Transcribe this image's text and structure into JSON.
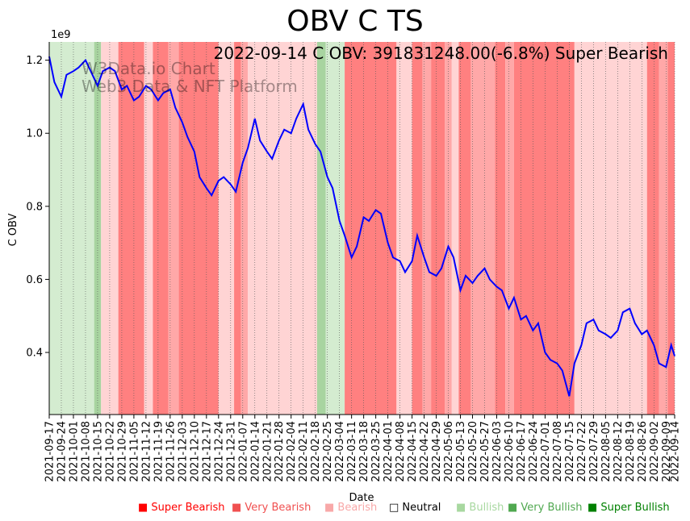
{
  "chart_data": {
    "type": "line",
    "title": "OBV C TS",
    "annotation": "2022-09-14 C OBV: 391831248.00(-6.8%) Super Bearish",
    "watermark": [
      "W3Data.io Chart",
      "Web3 Data & NFT Platform"
    ],
    "xlabel": "Date",
    "ylabel": "C OBV",
    "y_multiplier": "1e9",
    "ylim": [
      0.23,
      1.25
    ],
    "yticks": [
      "0.4",
      "0.6",
      "0.8",
      "1.0",
      "1.2"
    ],
    "xticks": [
      "2021-09-17",
      "2021-09-24",
      "2021-10-01",
      "2021-10-08",
      "2021-10-15",
      "2021-10-22",
      "2021-10-29",
      "2021-11-05",
      "2021-11-12",
      "2021-11-19",
      "2021-11-26",
      "2021-12-03",
      "2021-12-10",
      "2021-12-17",
      "2021-12-24",
      "2021-12-31",
      "2022-01-07",
      "2022-01-14",
      "2022-01-21",
      "2022-01-28",
      "2022-02-04",
      "2022-02-11",
      "2022-02-18",
      "2022-02-25",
      "2022-03-04",
      "2022-03-11",
      "2022-03-18",
      "2022-03-25",
      "2022-04-01",
      "2022-04-08",
      "2022-04-15",
      "2022-04-22",
      "2022-04-29",
      "2022-05-06",
      "2022-05-13",
      "2022-05-20",
      "2022-05-27",
      "2022-06-03",
      "2022-06-10",
      "2022-06-17",
      "2022-06-24",
      "2022-07-01",
      "2022-07-08",
      "2022-07-15",
      "2022-07-22",
      "2022-07-29",
      "2022-08-05",
      "2022-08-12",
      "2022-08-19",
      "2022-08-26",
      "2022-09-02",
      "2022-09-09",
      "2022-09-14"
    ],
    "x_range": [
      "2021-09-17",
      "2022-09-14"
    ],
    "grid": "vertical-dotted",
    "line_color": "#0000ff",
    "series": [
      {
        "x": [
          "2021-09-17",
          "2021-09-20",
          "2021-09-24",
          "2021-09-27",
          "2021-10-01",
          "2021-10-04",
          "2021-10-08",
          "2021-10-11",
          "2021-10-15",
          "2021-10-18",
          "2021-10-22",
          "2021-10-25",
          "2021-10-29",
          "2021-11-01",
          "2021-11-05",
          "2021-11-08",
          "2021-11-12",
          "2021-11-15",
          "2021-11-19",
          "2021-11-22",
          "2021-11-26",
          "2021-11-29",
          "2021-12-03",
          "2021-12-06",
          "2021-12-10",
          "2021-12-13",
          "2021-12-17",
          "2021-12-20",
          "2021-12-24",
          "2021-12-27",
          "2021-12-31",
          "2022-01-03",
          "2022-01-07",
          "2022-01-10",
          "2022-01-14",
          "2022-01-17",
          "2022-01-21",
          "2022-01-24",
          "2022-01-28",
          "2022-01-31",
          "2022-02-04",
          "2022-02-07",
          "2022-02-11",
          "2022-02-14",
          "2022-02-18",
          "2022-02-21",
          "2022-02-25",
          "2022-02-28",
          "2022-03-04",
          "2022-03-07",
          "2022-03-11",
          "2022-03-14",
          "2022-03-18",
          "2022-03-21",
          "2022-03-25",
          "2022-03-28",
          "2022-04-01",
          "2022-04-04",
          "2022-04-08",
          "2022-04-11",
          "2022-04-15",
          "2022-04-18",
          "2022-04-22",
          "2022-04-25",
          "2022-04-29",
          "2022-05-02",
          "2022-05-06",
          "2022-05-09",
          "2022-05-13",
          "2022-05-16",
          "2022-05-20",
          "2022-05-23",
          "2022-05-27",
          "2022-05-30",
          "2022-06-03",
          "2022-06-06",
          "2022-06-10",
          "2022-06-13",
          "2022-06-17",
          "2022-06-20",
          "2022-06-24",
          "2022-06-27",
          "2022-07-01",
          "2022-07-04",
          "2022-07-08",
          "2022-07-11",
          "2022-07-15",
          "2022-07-18",
          "2022-07-22",
          "2022-07-25",
          "2022-07-29",
          "2022-08-01",
          "2022-08-05",
          "2022-08-08",
          "2022-08-12",
          "2022-08-15",
          "2022-08-19",
          "2022-08-22",
          "2022-08-26",
          "2022-08-29",
          "2022-09-02",
          "2022-09-05",
          "2022-09-09",
          "2022-09-12",
          "2022-09-14"
        ],
        "y": [
          1.21,
          1.14,
          1.1,
          1.16,
          1.17,
          1.18,
          1.2,
          1.17,
          1.13,
          1.17,
          1.18,
          1.17,
          1.12,
          1.13,
          1.09,
          1.1,
          1.13,
          1.12,
          1.09,
          1.11,
          1.12,
          1.07,
          1.03,
          0.99,
          0.95,
          0.88,
          0.85,
          0.83,
          0.87,
          0.88,
          0.86,
          0.84,
          0.92,
          0.96,
          1.04,
          0.98,
          0.95,
          0.93,
          0.98,
          1.01,
          1.0,
          1.04,
          1.08,
          1.01,
          0.97,
          0.95,
          0.88,
          0.85,
          0.76,
          0.72,
          0.66,
          0.69,
          0.77,
          0.76,
          0.79,
          0.78,
          0.7,
          0.66,
          0.65,
          0.62,
          0.65,
          0.72,
          0.66,
          0.62,
          0.61,
          0.63,
          0.69,
          0.66,
          0.57,
          0.61,
          0.59,
          0.61,
          0.63,
          0.6,
          0.58,
          0.57,
          0.52,
          0.55,
          0.49,
          0.5,
          0.46,
          0.48,
          0.4,
          0.38,
          0.37,
          0.35,
          0.28,
          0.37,
          0.42,
          0.48,
          0.49,
          0.46,
          0.45,
          0.44,
          0.46,
          0.51,
          0.52,
          0.48,
          0.45,
          0.46,
          0.42,
          0.37,
          0.36,
          0.42,
          0.39
        ]
      }
    ],
    "background_bands": [
      {
        "from": "2021-09-17",
        "to": "2021-10-13",
        "sentiment": "Bullish"
      },
      {
        "from": "2021-10-13",
        "to": "2021-10-17",
        "sentiment": "Very Bullish"
      },
      {
        "from": "2021-10-17",
        "to": "2021-10-27",
        "sentiment": "Bearish"
      },
      {
        "from": "2021-10-27",
        "to": "2021-11-11",
        "sentiment": "Super Bearish"
      },
      {
        "from": "2021-11-11",
        "to": "2021-11-16",
        "sentiment": "Bearish"
      },
      {
        "from": "2021-11-16",
        "to": "2021-11-25",
        "sentiment": "Super Bearish"
      },
      {
        "from": "2021-11-25",
        "to": "2021-12-01",
        "sentiment": "Very Bearish"
      },
      {
        "from": "2021-12-01",
        "to": "2021-12-24",
        "sentiment": "Super Bearish"
      },
      {
        "from": "2021-12-24",
        "to": "2022-01-02",
        "sentiment": "Bearish"
      },
      {
        "from": "2022-01-02",
        "to": "2022-01-06",
        "sentiment": "Super Bearish"
      },
      {
        "from": "2022-01-06",
        "to": "2022-01-10",
        "sentiment": "Very Bearish"
      },
      {
        "from": "2022-01-10",
        "to": "2022-02-19",
        "sentiment": "Bearish"
      },
      {
        "from": "2022-02-19",
        "to": "2022-02-24",
        "sentiment": "Very Bullish"
      },
      {
        "from": "2022-02-24",
        "to": "2022-03-07",
        "sentiment": "Bullish"
      },
      {
        "from": "2022-03-07",
        "to": "2022-04-06",
        "sentiment": "Super Bearish"
      },
      {
        "from": "2022-04-06",
        "to": "2022-04-15",
        "sentiment": "Bearish"
      },
      {
        "from": "2022-04-15",
        "to": "2022-04-21",
        "sentiment": "Super Bearish"
      },
      {
        "from": "2022-04-21",
        "to": "2022-04-26",
        "sentiment": "Very Bearish"
      },
      {
        "from": "2022-04-26",
        "to": "2022-05-04",
        "sentiment": "Super Bearish"
      },
      {
        "from": "2022-05-04",
        "to": "2022-05-08",
        "sentiment": "Very Bearish"
      },
      {
        "from": "2022-05-08",
        "to": "2022-05-12",
        "sentiment": "Bearish"
      },
      {
        "from": "2022-05-12",
        "to": "2022-05-19",
        "sentiment": "Super Bearish"
      },
      {
        "from": "2022-05-19",
        "to": "2022-06-02",
        "sentiment": "Very Bearish"
      },
      {
        "from": "2022-06-02",
        "to": "2022-06-08",
        "sentiment": "Super Bearish"
      },
      {
        "from": "2022-06-08",
        "to": "2022-06-13",
        "sentiment": "Very Bearish"
      },
      {
        "from": "2022-06-13",
        "to": "2022-07-18",
        "sentiment": "Super Bearish"
      },
      {
        "from": "2022-07-18",
        "to": "2022-08-29",
        "sentiment": "Bearish"
      },
      {
        "from": "2022-08-29",
        "to": "2022-09-05",
        "sentiment": "Super Bearish"
      },
      {
        "from": "2022-09-05",
        "to": "2022-09-10",
        "sentiment": "Very Bearish"
      },
      {
        "from": "2022-09-10",
        "to": "2022-09-14",
        "sentiment": "Super Bearish"
      }
    ],
    "legend_position": "bottom-right",
    "legend": [
      {
        "label": "Super Bearish",
        "color": "#ff0000",
        "marker": "■"
      },
      {
        "label": "Very Bearish",
        "color": "#f05050",
        "marker": "■"
      },
      {
        "label": "Bearish",
        "color": "#f8a8a8",
        "marker": "■"
      },
      {
        "label": "Neutral",
        "color": "#000000",
        "marker": "□"
      },
      {
        "label": "Bullish",
        "color": "#a8d8a0",
        "marker": "■"
      },
      {
        "label": "Very Bullish",
        "color": "#50a850",
        "marker": "■"
      },
      {
        "label": "Super Bullish",
        "color": "#008000",
        "marker": "■"
      }
    ],
    "band_colors": {
      "Super Bearish": "#ff8080",
      "Very Bearish": "#ffa8a8",
      "Bearish": "#ffd4d4",
      "Bullish": "#d4ecd0",
      "Very Bullish": "#a8d4a0"
    }
  }
}
